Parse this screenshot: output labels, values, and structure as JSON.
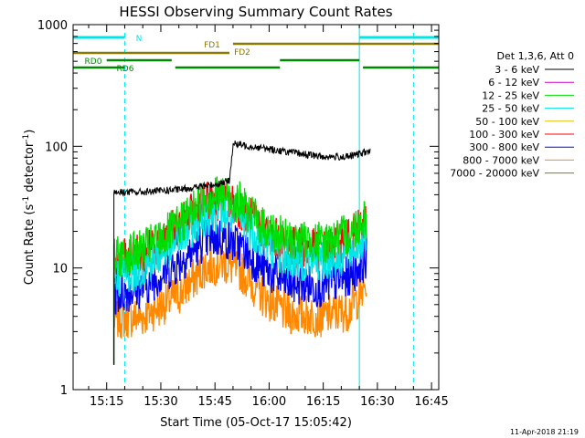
{
  "chart_data": {
    "type": "line",
    "title": "HESSI Observing Summary Count Rates",
    "xlabel": "Start Time (05-Oct-17 15:05:42)",
    "ylabel": "Count Rate (s⁻¹ detector⁻¹)",
    "ylabel_main": "Count Rate (s",
    "ylabel_sup1": "-1",
    "ylabel_mid": " detector",
    "ylabel_sup2": "-1",
    "ylabel_end": ")",
    "yscale": "log",
    "ylim": [
      1,
      1000
    ],
    "xlim": [
      "15:05:42",
      "16:47:00"
    ],
    "x_ticks": [
      "15:15",
      "15:30",
      "15:45",
      "16:00",
      "16:15",
      "16:30",
      "16:45"
    ],
    "y_ticks": [
      "1",
      "10",
      "100",
      "1000"
    ],
    "legend_title": "Det 1,3,6, Att 0",
    "legend_position": "right",
    "footer": "11-Apr-2018 21:19",
    "series": [
      {
        "name": "3 - 6 keV",
        "color": "#000000",
        "x": [
          "15:17",
          "15:25",
          "15:35",
          "15:44",
          "15:49",
          "15:50",
          "15:55",
          "16:05",
          "16:15",
          "16:22",
          "16:27",
          "16:28"
        ],
        "values": [
          42,
          42,
          44,
          48,
          52,
          105,
          100,
          90,
          82,
          82,
          90,
          null
        ]
      },
      {
        "name": "6 - 12 keV",
        "color": "#cc00cc",
        "x": [],
        "values": []
      },
      {
        "name": "12 - 25 keV",
        "color": "#00dd00",
        "x": [
          "15:17",
          "15:25",
          "15:35",
          "15:42",
          "15:47",
          "15:52",
          "15:58",
          "16:05",
          "16:15",
          "16:22",
          "16:27"
        ],
        "values": [
          12,
          14,
          22,
          38,
          40,
          34,
          22,
          17,
          16,
          19,
          27
        ]
      },
      {
        "name": "25 - 50 keV",
        "color": "#00e5e5",
        "x": [
          "15:17",
          "15:25",
          "15:35",
          "15:42",
          "15:47",
          "15:52",
          "15:58",
          "16:05",
          "16:15",
          "16:22",
          "16:27"
        ],
        "values": [
          8.5,
          10,
          17,
          27,
          29,
          25,
          17,
          12,
          11,
          13,
          19
        ]
      },
      {
        "name": "50 - 100 keV",
        "color": "#e0c000",
        "x": [],
        "values": []
      },
      {
        "name": "100 - 300 keV",
        "color": "#ff0000",
        "x": [
          "15:17",
          "15:25",
          "15:35",
          "15:42",
          "15:47",
          "15:52",
          "15:58",
          "16:05",
          "16:15",
          "16:22",
          "16:27"
        ],
        "values": [
          11,
          13,
          22,
          34,
          36,
          31,
          21,
          15,
          14,
          17,
          24
        ]
      },
      {
        "name": "300 - 800 keV",
        "color": "#0000ee",
        "x": [
          "15:17",
          "15:25",
          "15:35",
          "15:42",
          "15:47",
          "15:52",
          "15:58",
          "16:05",
          "16:15",
          "16:22",
          "16:27"
        ],
        "values": [
          6,
          7,
          11,
          17,
          18,
          15,
          10,
          7.5,
          7,
          8.5,
          12
        ]
      },
      {
        "name": "800 - 7000 keV",
        "color": "#ff8800",
        "x": [
          "15:17",
          "15:25",
          "15:35",
          "15:42",
          "15:47",
          "15:52",
          "15:58",
          "16:05",
          "16:15",
          "16:22",
          "16:27"
        ],
        "values": [
          3.8,
          4,
          6,
          10,
          11,
          9.5,
          6,
          4.2,
          4,
          4.5,
          7
        ]
      },
      {
        "name": "7000 - 20000 keV",
        "color": "#8b7a00",
        "x": [],
        "values": []
      }
    ],
    "annotation_bars": [
      {
        "label": "N",
        "color": "#00e5e5",
        "segments": [
          [
            "15:05:42",
            "15:20"
          ],
          [
            "16:25",
            "16:47"
          ]
        ]
      },
      {
        "label": "FD1",
        "color": "#8b7a00",
        "segments": [
          [
            "15:50",
            "16:47"
          ]
        ]
      },
      {
        "label": "FD2",
        "color": "#8b7a00",
        "segments": [
          [
            "15:05:42",
            "15:49"
          ]
        ]
      },
      {
        "label": "RD0",
        "color": "#008800",
        "segments": [
          [
            "15:15",
            "15:33"
          ],
          [
            "16:03",
            "16:25"
          ]
        ]
      },
      {
        "label": "RD6",
        "color": "#008800",
        "segments": [
          [
            "15:05:42",
            "15:20"
          ],
          [
            "15:34",
            "16:03"
          ],
          [
            "16:26",
            "16:47"
          ]
        ]
      }
    ],
    "vertical_lines": [
      {
        "x": "15:05:42",
        "color": "#00e5e5",
        "style": "solid"
      },
      {
        "x": "15:20",
        "color": "#00e5e5",
        "style": "dashed"
      },
      {
        "x": "16:25",
        "color": "#00e5e5",
        "style": "solid"
      },
      {
        "x": "16:40",
        "color": "#00e5e5",
        "style": "dashed"
      }
    ]
  }
}
